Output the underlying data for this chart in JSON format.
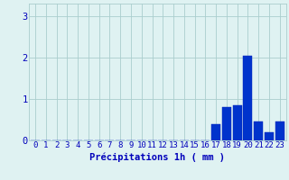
{
  "hours": [
    0,
    1,
    2,
    3,
    4,
    5,
    6,
    7,
    8,
    9,
    10,
    11,
    12,
    13,
    14,
    15,
    16,
    17,
    18,
    19,
    20,
    21,
    22,
    23
  ],
  "values": [
    0,
    0,
    0,
    0,
    0,
    0,
    0,
    0,
    0,
    0,
    0,
    0,
    0,
    0,
    0,
    0,
    0,
    0.4,
    0.8,
    0.85,
    2.05,
    0.45,
    0.2,
    0.45
  ],
  "bar_color": "#0033cc",
  "bar_edge_color": "#0022bb",
  "background_color": "#dff2f2",
  "grid_color": "#aacece",
  "text_color": "#0000bb",
  "xlabel": "Précipitations 1h ( mm )",
  "ylim": [
    0,
    3.3
  ],
  "yticks": [
    0,
    1,
    2,
    3
  ],
  "xlim": [
    -0.6,
    23.6
  ],
  "label_fontsize": 7.5,
  "tick_fontsize": 6.5
}
